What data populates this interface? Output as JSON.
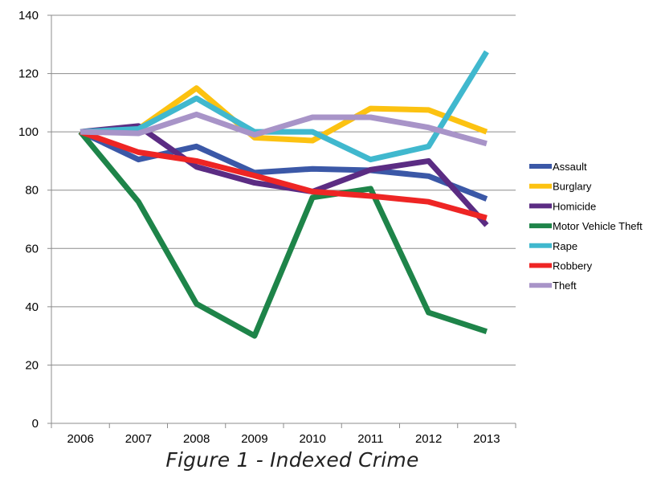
{
  "chart_data": {
    "type": "line",
    "categories": [
      "2006",
      "2007",
      "2008",
      "2009",
      "2010",
      "2011",
      "2012",
      "2013"
    ],
    "ylim": [
      0,
      140
    ],
    "yticks": [
      0,
      20,
      40,
      60,
      80,
      100,
      120,
      140
    ],
    "grid": true,
    "legend_position": "right",
    "series": [
      {
        "name": "Assault",
        "color": "#3b58a7",
        "values": [
          100,
          90.5,
          95,
          86,
          87.3,
          86.8,
          84.8,
          77
        ]
      },
      {
        "name": "Burglary",
        "color": "#fcc211",
        "values": [
          100,
          101,
          115,
          98,
          97,
          108,
          107.5,
          100
        ]
      },
      {
        "name": "Homicide",
        "color": "#5b2c83",
        "values": [
          100,
          102,
          88,
          82.5,
          79.5,
          87,
          90,
          68
        ]
      },
      {
        "name": "Motor Vehicle Theft",
        "color": "#1e8449",
        "values": [
          100,
          76,
          41,
          30,
          77.5,
          80.5,
          38,
          31.5
        ]
      },
      {
        "name": "Rape",
        "color": "#40b8ce",
        "values": [
          100,
          101,
          111.5,
          100,
          100,
          90.5,
          95,
          127.5
        ]
      },
      {
        "name": "Robbery",
        "color": "#ee2524",
        "values": [
          100,
          93,
          90,
          85,
          79.5,
          78,
          76,
          70.5
        ]
      },
      {
        "name": "Theft",
        "color": "#a894c8",
        "values": [
          100,
          99.5,
          106,
          99,
          105,
          105,
          101.5,
          96
        ]
      }
    ]
  },
  "caption": "Figure 1 - Indexed Crime"
}
